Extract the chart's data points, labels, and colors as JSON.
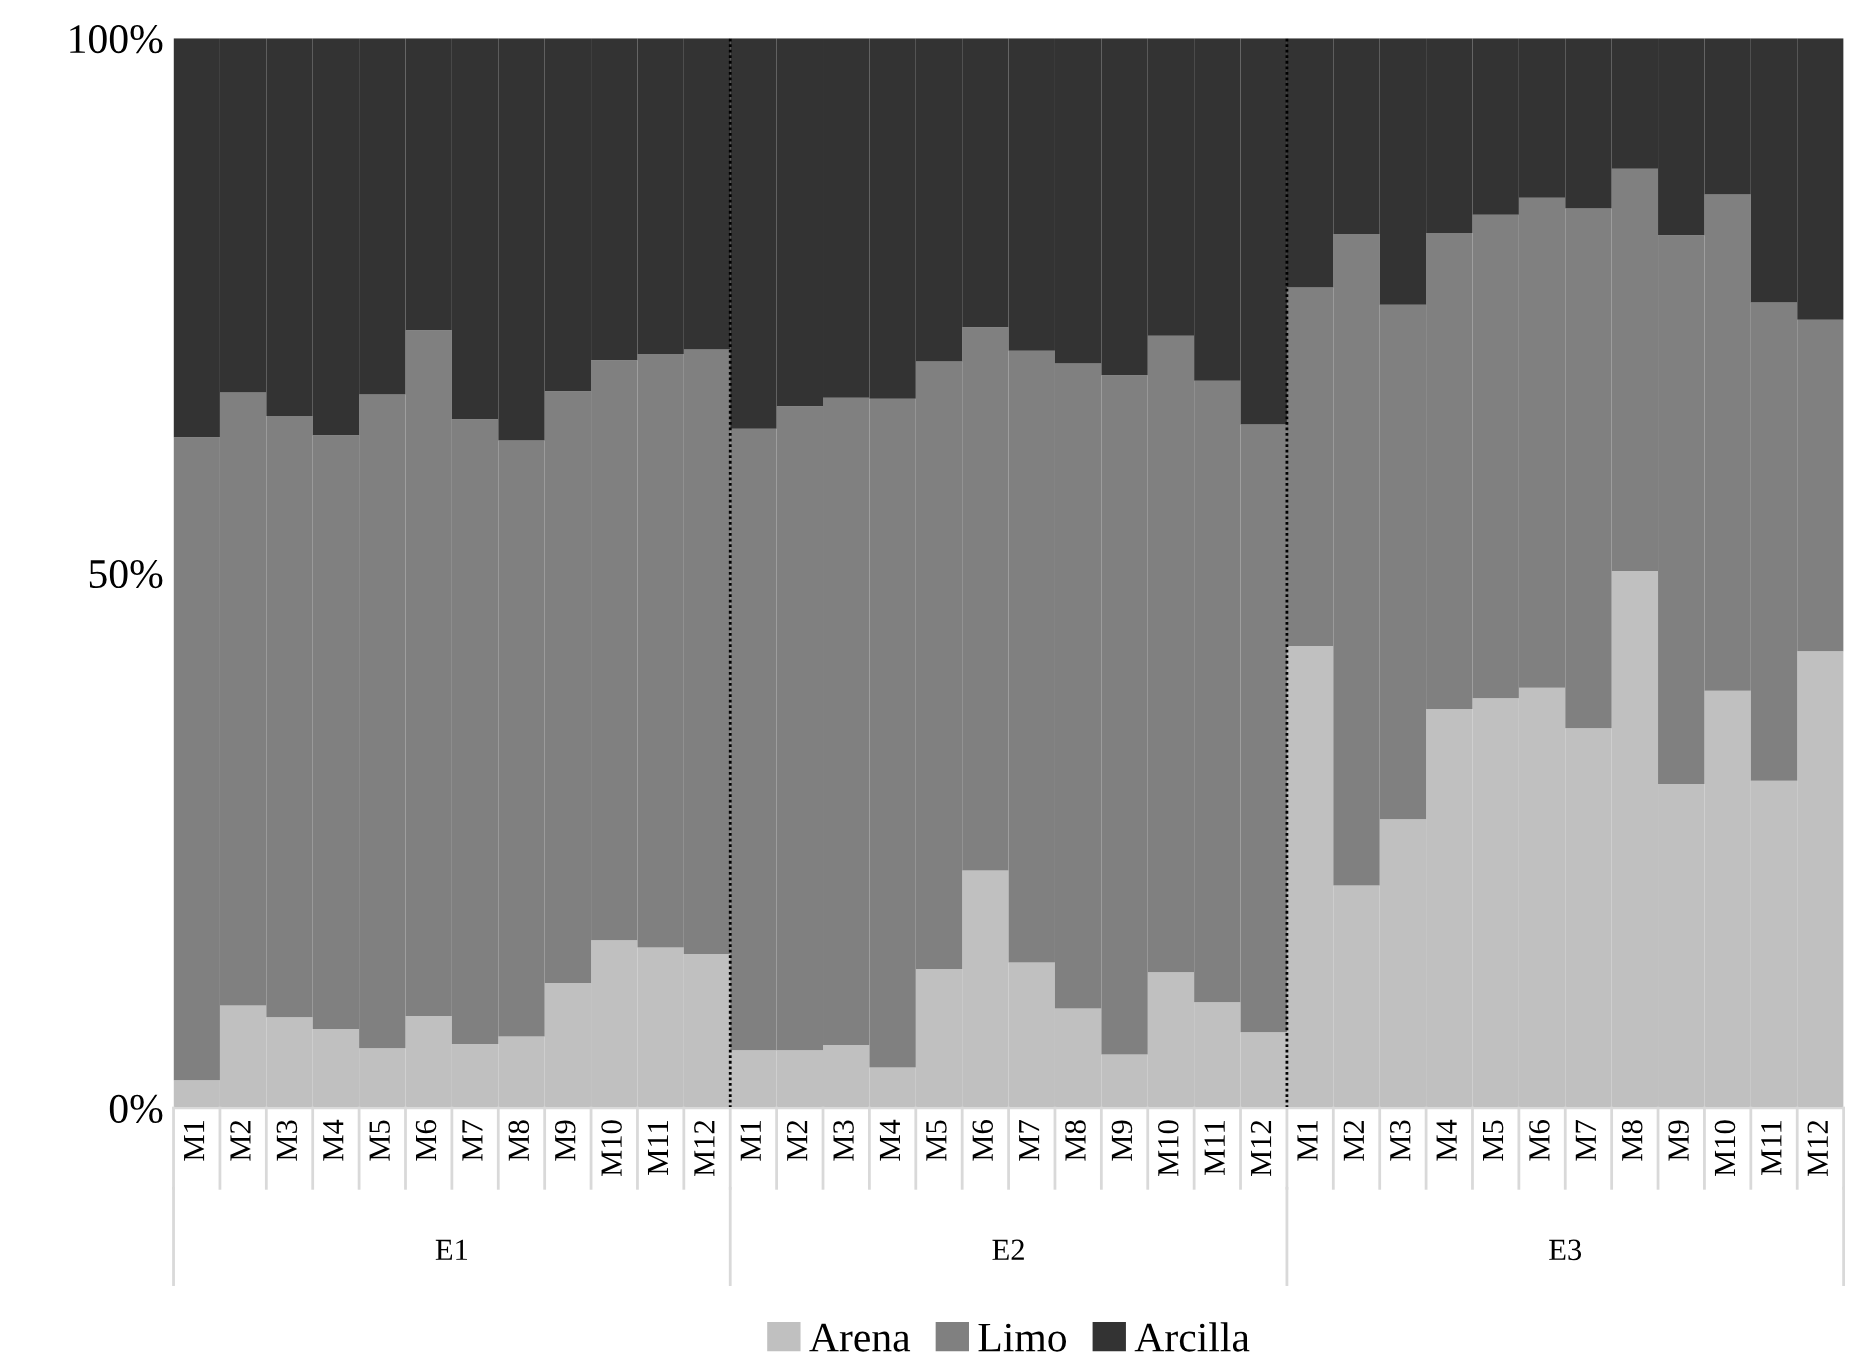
{
  "chart_data": {
    "type": "bar",
    "stacked": true,
    "legend": "bottom",
    "grid": false,
    "categories": [
      "M1",
      "M2",
      "M3",
      "M4",
      "M5",
      "M6",
      "M7",
      "M8",
      "M9",
      "M10",
      "M11",
      "M12",
      "M1",
      "M2",
      "M3",
      "M4",
      "M5",
      "M6",
      "M7",
      "M8",
      "M9",
      "M10",
      "M11",
      "M12",
      "M1",
      "M2",
      "M3",
      "M4",
      "M5",
      "M6",
      "M7",
      "M8",
      "M9",
      "M10",
      "M11",
      "M12"
    ],
    "annotations": [
      "E1",
      "E2",
      "E3"
    ],
    "ylim": [
      0,
      100
    ],
    "yticks": [
      {
        "value": 0,
        "label": "0%"
      },
      {
        "value": 50,
        "label": "50%"
      },
      {
        "value": 100,
        "label": "100%"
      }
    ],
    "series": [
      {
        "name": "Arena",
        "color": "#c0c0c0",
        "values": [
          2.6,
          9.6,
          8.5,
          7.4,
          5.6,
          8.6,
          6.0,
          6.7,
          11.7,
          15.7,
          15.0,
          14.4,
          5.4,
          5.4,
          5.9,
          3.8,
          13.0,
          22.2,
          13.6,
          9.3,
          5.0,
          12.7,
          9.9,
          7.1,
          43.2,
          20.8,
          27.0,
          37.3,
          38.3,
          39.3,
          35.5,
          50.2,
          30.3,
          39.0,
          30.6,
          42.7
        ]
      },
      {
        "name": "Limo",
        "color": "#808080",
        "values": [
          60.1,
          57.3,
          56.2,
          55.5,
          61.1,
          64.1,
          58.4,
          55.7,
          55.3,
          54.2,
          55.5,
          56.5,
          58.1,
          60.2,
          60.5,
          62.5,
          56.8,
          50.8,
          57.2,
          60.3,
          63.5,
          59.5,
          58.1,
          56.8,
          33.5,
          60.9,
          48.1,
          44.5,
          45.2,
          45.8,
          48.6,
          37.6,
          51.3,
          46.4,
          44.7,
          31.0
        ]
      },
      {
        "name": "Arcilla",
        "color": "#333333",
        "values": [
          37.3,
          33.1,
          35.3,
          37.1,
          33.3,
          27.3,
          35.6,
          37.6,
          33.0,
          30.1,
          29.5,
          29.1,
          36.5,
          34.4,
          33.6,
          33.7,
          30.2,
          27.0,
          29.2,
          30.4,
          31.5,
          27.8,
          32.0,
          36.1,
          23.3,
          18.3,
          24.9,
          18.2,
          16.5,
          14.9,
          15.9,
          12.2,
          18.4,
          14.6,
          24.7,
          26.3
        ]
      }
    ]
  }
}
